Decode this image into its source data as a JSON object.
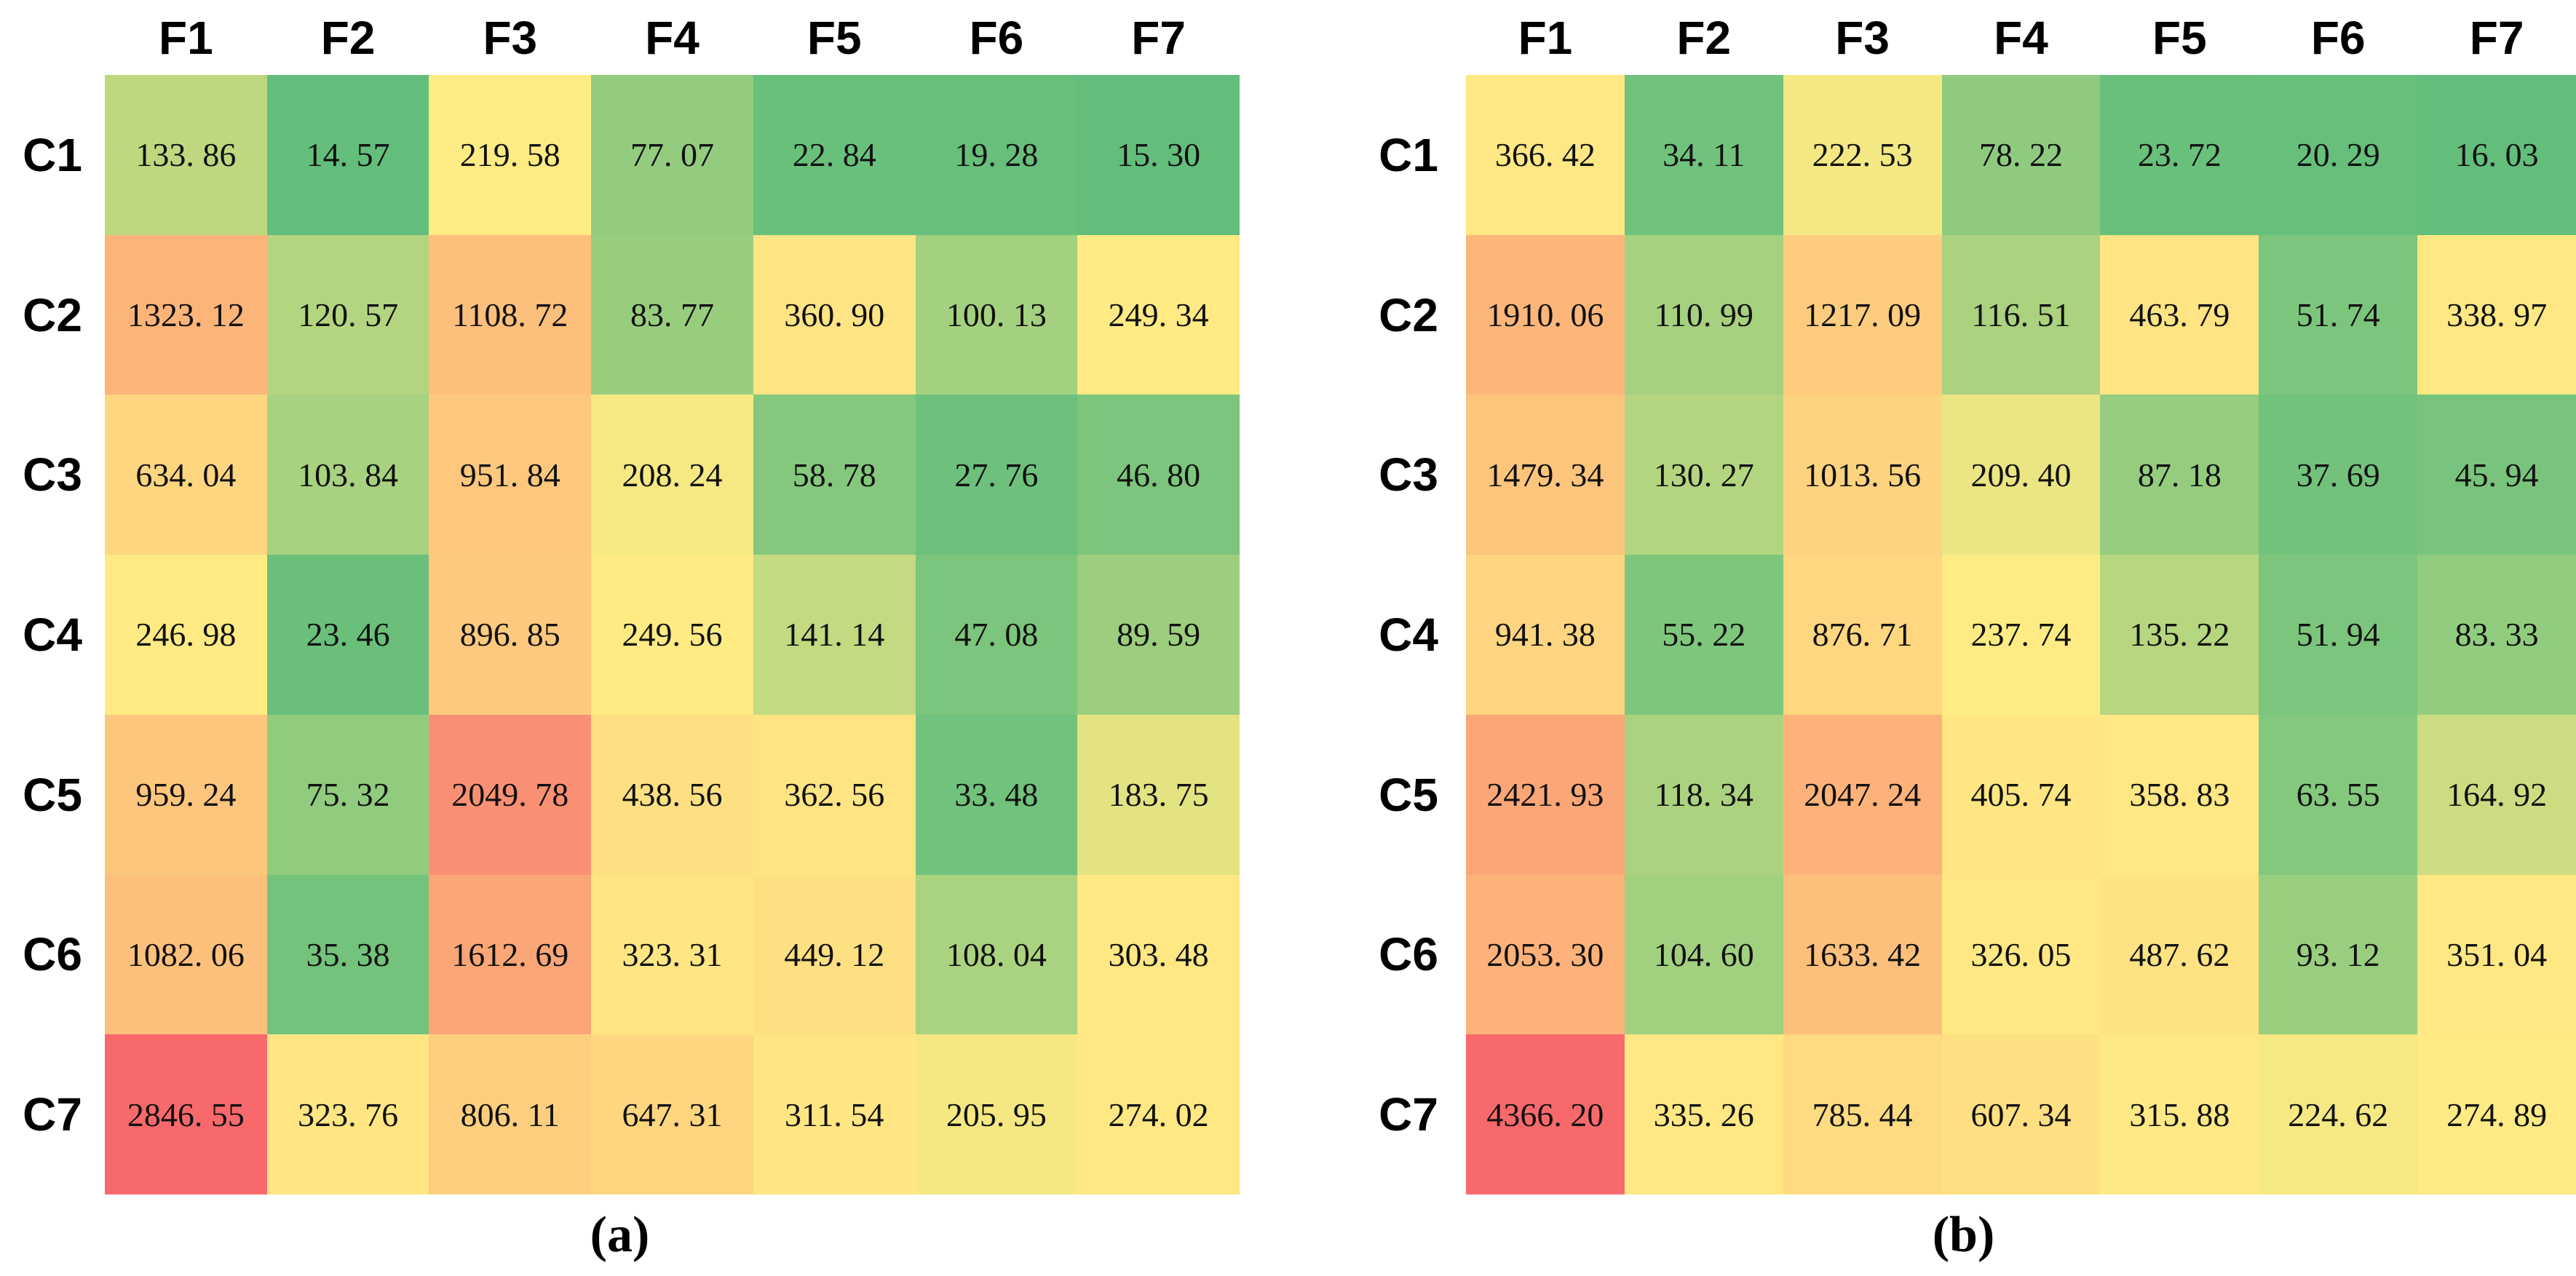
{
  "figure": {
    "description": "Two side-by-side heatmap tables with Excel-style 3-color scale (green low, yellow median, red high), no gridlines, no legend",
    "color_scale": {
      "low": "#63BE7B",
      "mid": "#FFEB84",
      "high": "#F8696B",
      "midpoint_rule": "50th percentile per panel"
    },
    "value_format": "two decimals with space after decimal point, e.g. 133. 86"
  },
  "chart_data": [
    {
      "type": "heatmap",
      "title": "(a)",
      "x_labels": [
        "F1",
        "F2",
        "F3",
        "F4",
        "F5",
        "F6",
        "F7"
      ],
      "y_labels": [
        "C1",
        "C2",
        "C3",
        "C4",
        "C5",
        "C6",
        "C7"
      ],
      "values": [
        [
          133.86,
          14.57,
          219.58,
          77.07,
          22.84,
          19.28,
          15.3
        ],
        [
          1323.12,
          120.57,
          1108.72,
          83.77,
          360.9,
          100.13,
          249.34
        ],
        [
          634.04,
          103.84,
          951.84,
          208.24,
          58.78,
          27.76,
          46.8
        ],
        [
          246.98,
          23.46,
          896.85,
          249.56,
          141.14,
          47.08,
          89.59
        ],
        [
          959.24,
          75.32,
          2049.78,
          438.56,
          362.56,
          33.48,
          183.75
        ],
        [
          1082.06,
          35.38,
          1612.69,
          323.31,
          449.12,
          108.04,
          303.48
        ],
        [
          2846.55,
          323.76,
          806.11,
          647.31,
          311.54,
          205.95,
          274.02
        ]
      ],
      "colormap": {
        "low": "#63BE7B",
        "mid": "#FFEB84",
        "high": "#F8696B"
      },
      "legend": "none",
      "grid": false
    },
    {
      "type": "heatmap",
      "title": "(b)",
      "x_labels": [
        "F1",
        "F2",
        "F3",
        "F4",
        "F5",
        "F6",
        "F7"
      ],
      "y_labels": [
        "C1",
        "C2",
        "C3",
        "C4",
        "C5",
        "C6",
        "C7"
      ],
      "values": [
        [
          366.42,
          34.11,
          222.53,
          78.22,
          23.72,
          20.29,
          16.03
        ],
        [
          1910.06,
          110.99,
          1217.09,
          116.51,
          463.79,
          51.74,
          338.97
        ],
        [
          1479.34,
          130.27,
          1013.56,
          209.4,
          87.18,
          37.69,
          45.94
        ],
        [
          941.38,
          55.22,
          876.71,
          237.74,
          135.22,
          51.94,
          83.33
        ],
        [
          2421.93,
          118.34,
          2047.24,
          405.74,
          358.83,
          63.55,
          164.92
        ],
        [
          2053.3,
          104.6,
          1633.42,
          326.05,
          487.62,
          93.12,
          351.04
        ],
        [
          4366.2,
          335.26,
          785.44,
          607.34,
          315.88,
          224.62,
          274.89
        ]
      ],
      "colormap": {
        "low": "#63BE7B",
        "mid": "#FFEB84",
        "high": "#F8696B"
      },
      "legend": "none",
      "grid": false
    }
  ]
}
